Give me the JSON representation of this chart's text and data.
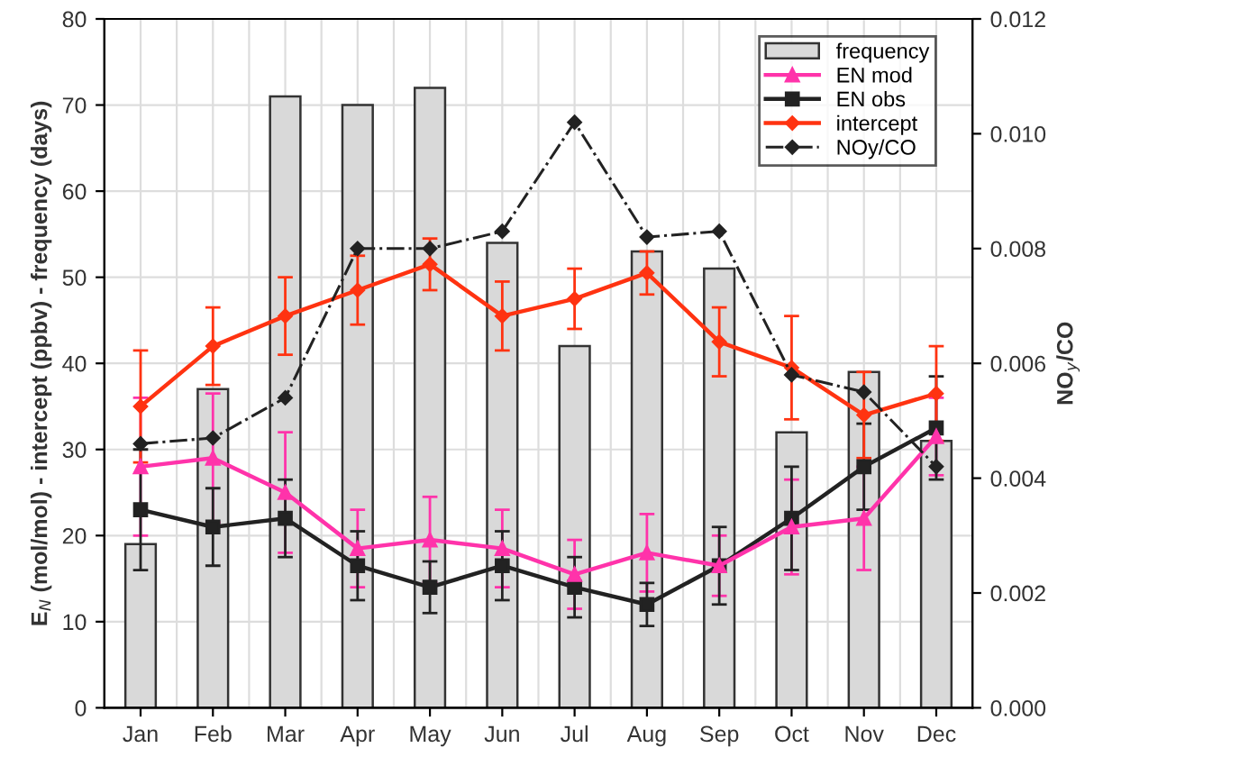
{
  "chart_data": {
    "type": "bar",
    "categories": [
      "Jan",
      "Feb",
      "Mar",
      "Apr",
      "May",
      "Jun",
      "Jul",
      "Aug",
      "Sep",
      "Oct",
      "Nov",
      "Dec"
    ],
    "ylabel": "E$_{N}$ (mol/mol) - intercept (ppbv) - frequency (days)",
    "y2label": "NO$_{y}$/CO",
    "ylim": [
      0,
      80
    ],
    "yticks": [
      0,
      10,
      20,
      30,
      40,
      50,
      60,
      70,
      80
    ],
    "y2lim": [
      0,
      0.012
    ],
    "y2ticks": [
      {
        "value": 0,
        "label": "0.000"
      },
      {
        "value": 0.002,
        "label": "0.002"
      },
      {
        "value": 0.004,
        "label": "0.004"
      },
      {
        "value": 0.006,
        "label": "0.006"
      },
      {
        "value": 0.008,
        "label": "0.008"
      },
      {
        "value": 0.01,
        "label": "0.010"
      },
      {
        "value": 0.012,
        "label": "0.012"
      }
    ],
    "grid": true,
    "legend": "top right",
    "series": [
      {
        "name": "frequency",
        "color": "#d9d9d9",
        "values": [
          19,
          37,
          71,
          70,
          72,
          54,
          42,
          53,
          51,
          32,
          39,
          31
        ]
      },
      {
        "name": "EN mod",
        "type": "line",
        "color": "#ff33aa",
        "marker": "triangle",
        "values": [
          28,
          29,
          25,
          18.5,
          19.5,
          18.5,
          15.5,
          18,
          16.5,
          21,
          22,
          31.5
        ],
        "errors": [
          8,
          7.5,
          7,
          4.5,
          5,
          4.5,
          4,
          4.5,
          3.5,
          5.5,
          6,
          4.5
        ]
      },
      {
        "name": "EN obs",
        "type": "line",
        "color": "#222222",
        "marker": "square",
        "values": [
          23,
          21,
          22,
          16.5,
          14,
          16.5,
          14,
          12,
          16.5,
          22,
          28,
          32.5
        ],
        "errors": [
          7,
          4.5,
          4.5,
          4,
          3,
          4,
          3.5,
          2.5,
          4.5,
          6,
          5,
          6
        ]
      },
      {
        "name": "intercept",
        "type": "line",
        "color": "#ff3311",
        "marker": "diamond",
        "values": [
          35,
          42,
          45.5,
          48.5,
          51.5,
          45.5,
          47.5,
          50.5,
          42.5,
          39.5,
          34,
          36.5
        ],
        "errors": [
          6.5,
          4.5,
          4.5,
          4,
          3,
          4,
          3.5,
          2.5,
          4,
          6,
          5,
          5.5
        ]
      },
      {
        "name": "NOy/CO",
        "type": "line",
        "axis": "y2",
        "color": "#222222",
        "marker": "diamond",
        "line_style": "dashdot",
        "values": [
          0.0046,
          0.0047,
          0.0054,
          0.008,
          0.008,
          0.0083,
          0.0102,
          0.0082,
          0.0083,
          0.0058,
          0.0055,
          0.0042
        ]
      }
    ]
  }
}
